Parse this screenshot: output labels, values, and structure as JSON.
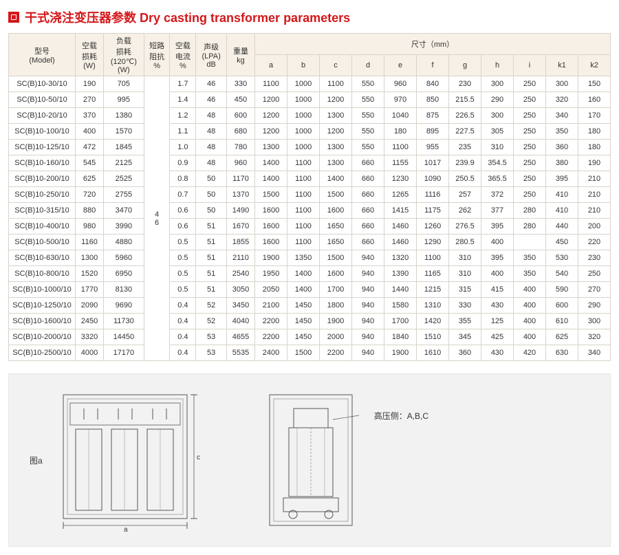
{
  "title": "干式浇注变压器参数 Dry casting transformer parameters",
  "headers": {
    "model": "型号\n(Model)",
    "noload": "空载\n损耗\n(W)",
    "load": "负载\n损耗\n(120℃)\n(W)",
    "impedance": "短路\n阻抗\n%",
    "current": "空载\n电流\n%",
    "noise": "声级\n(LPA)\ndB",
    "weight": "重量\nkg",
    "dimensions": "尺寸（mm）",
    "dim_cols": [
      "a",
      "b",
      "c",
      "d",
      "e",
      "f",
      "g",
      "h",
      "i",
      "k1",
      "k2"
    ]
  },
  "impedance_merged": "4\n6",
  "rows": [
    {
      "model": "SC(B)10-30/10",
      "noload": "190",
      "load": "705",
      "cur": "1.7",
      "db": "46",
      "wt": "330",
      "a": "1100",
      "b": "1000",
      "c": "1100",
      "d": "550",
      "e": "960",
      "f": "840",
      "g": "230",
      "h": "300",
      "i": "250",
      "k1": "300",
      "k2": "150"
    },
    {
      "model": "SC(B)10-50/10",
      "noload": "270",
      "load": "995",
      "cur": "1.4",
      "db": "46",
      "wt": "450",
      "a": "1200",
      "b": "1000",
      "c": "1200",
      "d": "550",
      "e": "970",
      "f": "850",
      "g": "215.5",
      "h": "290",
      "i": "250",
      "k1": "320",
      "k2": "160"
    },
    {
      "model": "SC(B)10-20/10",
      "noload": "370",
      "load": "1380",
      "cur": "1.2",
      "db": "48",
      "wt": "600",
      "a": "1200",
      "b": "1000",
      "c": "1300",
      "d": "550",
      "e": "1040",
      "f": "875",
      "g": "226.5",
      "h": "300",
      "i": "250",
      "k1": "340",
      "k2": "170"
    },
    {
      "model": "SC(B)10-100/10",
      "noload": "400",
      "load": "1570",
      "cur": "1.1",
      "db": "48",
      "wt": "680",
      "a": "1200",
      "b": "1000",
      "c": "1200",
      "d": "550",
      "e": "180",
      "f": "895",
      "g": "227.5",
      "h": "305",
      "i": "250",
      "k1": "350",
      "k2": "180"
    },
    {
      "model": "SC(B)10-125/10",
      "noload": "472",
      "load": "1845",
      "cur": "1.0",
      "db": "48",
      "wt": "780",
      "a": "1300",
      "b": "1000",
      "c": "1300",
      "d": "550",
      "e": "1100",
      "f": "955",
      "g": "235",
      "h": "310",
      "i": "250",
      "k1": "360",
      "k2": "180"
    },
    {
      "model": "SC(B)10-160/10",
      "noload": "545",
      "load": "2125",
      "cur": "0.9",
      "db": "48",
      "wt": "960",
      "a": "1400",
      "b": "1100",
      "c": "1300",
      "d": "660",
      "e": "1155",
      "f": "1017",
      "g": "239.9",
      "h": "354.5",
      "i": "250",
      "k1": "380",
      "k2": "190"
    },
    {
      "model": "SC(B)10-200/10",
      "noload": "625",
      "load": "2525",
      "cur": "0.8",
      "db": "50",
      "wt": "1170",
      "a": "1400",
      "b": "1100",
      "c": "1400",
      "d": "660",
      "e": "1230",
      "f": "1090",
      "g": "250.5",
      "h": "365.5",
      "i": "250",
      "k1": "395",
      "k2": "210"
    },
    {
      "model": "SC(B)10-250/10",
      "noload": "720",
      "load": "2755",
      "cur": "0.7",
      "db": "50",
      "wt": "1370",
      "a": "1500",
      "b": "1100",
      "c": "1500",
      "d": "660",
      "e": "1265",
      "f": "1116",
      "g": "257",
      "h": "372",
      "i": "250",
      "k1": "410",
      "k2": "210"
    },
    {
      "model": "SC(B)10-315/10",
      "noload": "880",
      "load": "3470",
      "cur": "0.6",
      "db": "50",
      "wt": "1490",
      "a": "1600",
      "b": "1100",
      "c": "1600",
      "d": "660",
      "e": "1415",
      "f": "1175",
      "g": "262",
      "h": "377",
      "i": "280",
      "k1": "410",
      "k2": "210"
    },
    {
      "model": "SC(B)10-400/10",
      "noload": "980",
      "load": "3990",
      "cur": "0.6",
      "db": "51",
      "wt": "1670",
      "a": "1600",
      "b": "1100",
      "c": "1650",
      "d": "660",
      "e": "1460",
      "f": "1260",
      "g": "276.5",
      "h": "395",
      "i": "280",
      "k1": "440",
      "k2": "200"
    },
    {
      "model": "SC(B)10-500/10",
      "noload": "1160",
      "load": "4880",
      "cur": "0.5",
      "db": "51",
      "wt": "1855",
      "a": "1600",
      "b": "1100",
      "c": "1650",
      "d": "660",
      "e": "1460",
      "f": "1290",
      "g": "280.5",
      "h": "400",
      "i": "",
      "k1": "450",
      "k2": "220"
    },
    {
      "model": "SC(B)10-630/10",
      "noload": "1300",
      "load": "5960",
      "cur": "0.5",
      "db": "51",
      "wt": "2110",
      "a": "1900",
      "b": "1350",
      "c": "1500",
      "d": "940",
      "e": "1320",
      "f": "1100",
      "g": "310",
      "h": "395",
      "i": "350",
      "k1": "530",
      "k2": "230"
    },
    {
      "model": "SC(B)10-800/10",
      "noload": "1520",
      "load": "6950",
      "cur": "0.5",
      "db": "51",
      "wt": "2540",
      "a": "1950",
      "b": "1400",
      "c": "1600",
      "d": "940",
      "e": "1390",
      "f": "1165",
      "g": "310",
      "h": "400",
      "i": "350",
      "k1": "540",
      "k2": "250"
    },
    {
      "model": "SC(B)10-1000/10",
      "noload": "1770",
      "load": "8130",
      "cur": "0.5",
      "db": "51",
      "wt": "3050",
      "a": "2050",
      "b": "1400",
      "c": "1700",
      "d": "940",
      "e": "1440",
      "f": "1215",
      "g": "315",
      "h": "415",
      "i": "400",
      "k1": "590",
      "k2": "270"
    },
    {
      "model": "SC(B)10-1250/10",
      "noload": "2090",
      "load": "9690",
      "cur": "0.4",
      "db": "52",
      "wt": "3450",
      "a": "2100",
      "b": "1450",
      "c": "1800",
      "d": "940",
      "e": "1580",
      "f": "1310",
      "g": "330",
      "h": "430",
      "i": "400",
      "k1": "600",
      "k2": "290"
    },
    {
      "model": "SC(B)10-1600/10",
      "noload": "2450",
      "load": "11730",
      "cur": "0.4",
      "db": "52",
      "wt": "4040",
      "a": "2200",
      "b": "1450",
      "c": "1900",
      "d": "940",
      "e": "1700",
      "f": "1420",
      "g": "355",
      "h": "125",
      "i": "400",
      "k1": "610",
      "k2": "300"
    },
    {
      "model": "SC(B)10-2000/10",
      "noload": "3320",
      "load": "14450",
      "cur": "0.4",
      "db": "53",
      "wt": "4655",
      "a": "2200",
      "b": "1450",
      "c": "2000",
      "d": "940",
      "e": "1840",
      "f": "1510",
      "g": "345",
      "h": "425",
      "i": "400",
      "k1": "625",
      "k2": "320"
    },
    {
      "model": "SC(B)10-2500/10",
      "noload": "4000",
      "load": "17170",
      "cur": "0.4",
      "db": "53",
      "wt": "5535",
      "a": "2400",
      "b": "1500",
      "c": "2200",
      "d": "940",
      "e": "1900",
      "f": "1610",
      "g": "360",
      "h": "430",
      "i": "420",
      "k1": "630",
      "k2": "340"
    }
  ],
  "diagram": {
    "fig_a_label": "图a",
    "dim_a": "a",
    "dim_c": "c",
    "hv_label": "高压侧：A,B,C"
  },
  "colors": {
    "accent": "#d4171a",
    "header_bg": "#f6f0e6",
    "border": "#d9d3c9",
    "diagram_bg": "#f2f2f2"
  }
}
